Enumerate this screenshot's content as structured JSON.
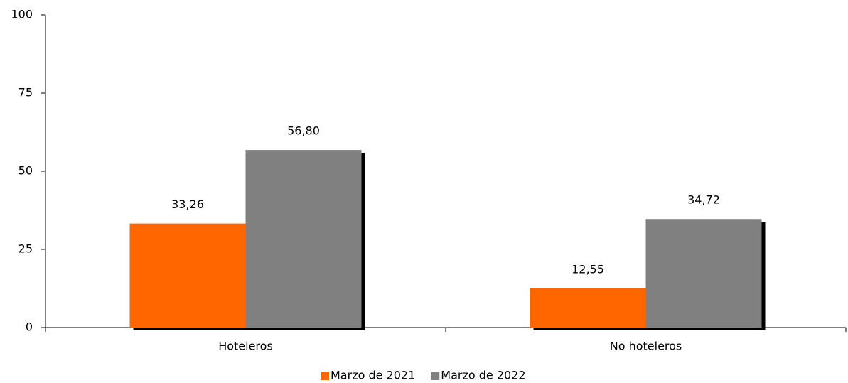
{
  "chart_data": {
    "type": "bar",
    "categories": [
      "Hoteleros",
      "No hoteleros"
    ],
    "series": [
      {
        "name": "Marzo de 2021",
        "color": "#ff6600",
        "values": [
          33.26,
          12.55
        ],
        "value_labels": [
          "33,26",
          "12,55"
        ]
      },
      {
        "name": "Marzo de 2022",
        "color": "#808080",
        "values": [
          56.8,
          34.72
        ],
        "value_labels": [
          "56,80",
          "34,72"
        ]
      }
    ],
    "ylim": [
      0,
      100
    ],
    "yticks": [
      0,
      25,
      50,
      75,
      100
    ],
    "grid": false,
    "legend": "bottom"
  }
}
